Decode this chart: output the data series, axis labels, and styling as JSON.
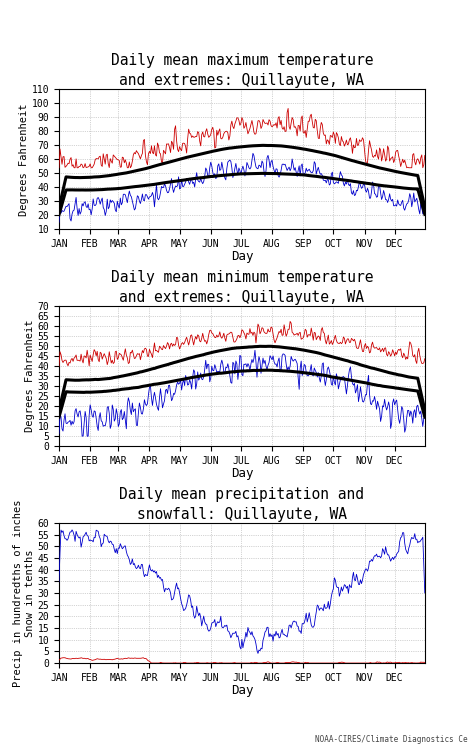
{
  "title1": "Daily mean maximum temperature\nand extremes: Quillayute, WA",
  "title2": "Daily mean minimum temperature\nand extremes: Quillayute, WA",
  "title3": "Daily mean precipitation and\nsnowfall: Quillayute, WA",
  "ylabel1": "Degrees Fahrenheit",
  "ylabel2": "Degrees Fahrenheit",
  "ylabel3": "Precip in hundredths of inches\nSnow in tenths",
  "xlabel": "Day",
  "month_labels": [
    "JAN",
    "FEB",
    "MAR",
    "APR",
    "MAY",
    "JUN",
    "JUL",
    "AUG",
    "SEP",
    "OCT",
    "NOV",
    "DEC"
  ],
  "month_ticks": [
    1,
    32,
    60,
    91,
    121,
    152,
    182,
    213,
    244,
    274,
    305,
    335
  ],
  "ylim1": [
    10,
    110
  ],
  "ylim2": [
    0,
    70
  ],
  "ylim3": [
    0,
    60
  ],
  "yticks1": [
    10,
    20,
    30,
    40,
    50,
    60,
    70,
    80,
    90,
    100,
    110
  ],
  "yticks2": [
    0,
    5,
    10,
    15,
    20,
    25,
    30,
    35,
    40,
    45,
    50,
    55,
    60,
    65,
    70
  ],
  "yticks3": [
    0,
    5,
    10,
    15,
    20,
    25,
    30,
    35,
    40,
    45,
    50,
    55,
    60
  ],
  "color_red": "#cc0000",
  "color_blue": "#0000cc",
  "color_black": "#000000",
  "color_bg": "#ffffff",
  "grid_color": "#aaaaaa",
  "watermark": "NOAA-CIRES/Climate Diagnostics Ce",
  "title_fontsize": 10.5,
  "label_fontsize": 7.5,
  "tick_fontsize": 7,
  "lw_data": 0.6,
  "lw_black": 2.2
}
